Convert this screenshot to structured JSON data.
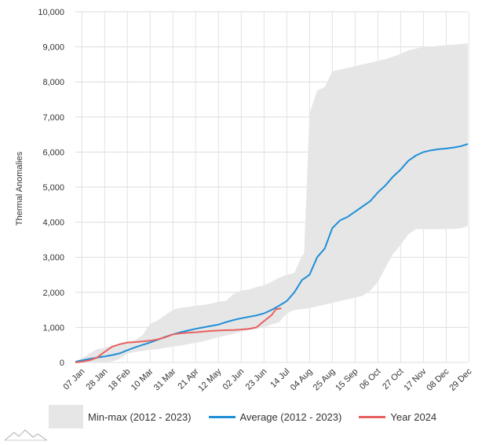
{
  "chart_data": {
    "type": "area",
    "title": "",
    "xlabel": "",
    "ylabel": "Thermal Anomalies",
    "ylim": [
      0,
      10000
    ],
    "yticks": [
      0,
      1000,
      2000,
      3000,
      4000,
      5000,
      6000,
      7000,
      8000,
      9000,
      10000
    ],
    "ytick_labels": [
      "0",
      "1,000",
      "2,000",
      "3,000",
      "4,000",
      "5,000",
      "6,000",
      "7,000",
      "8,000",
      "9,000",
      "10,000"
    ],
    "x_range_days": [
      1,
      363
    ],
    "x_ticks": [
      {
        "label": "07 Jan",
        "day": 7
      },
      {
        "label": "28 Jan",
        "day": 28
      },
      {
        "label": "18 Feb",
        "day": 49
      },
      {
        "label": "10 Mar",
        "day": 70
      },
      {
        "label": "31 Mar",
        "day": 91
      },
      {
        "label": "21 Apr",
        "day": 112
      },
      {
        "label": "12 May",
        "day": 133
      },
      {
        "label": "02 Jun",
        "day": 154
      },
      {
        "label": "23 Jun",
        "day": 175
      },
      {
        "label": "14 Jul",
        "day": 196
      },
      {
        "label": "04 Aug",
        "day": 217
      },
      {
        "label": "25 Aug",
        "day": 238
      },
      {
        "label": "15 Sep",
        "day": 259
      },
      {
        "label": "06 Oct",
        "day": 280
      },
      {
        "label": "27 Oct",
        "day": 301
      },
      {
        "label": "17 Nov",
        "day": 322
      },
      {
        "label": "08 Dec",
        "day": 343
      },
      {
        "label": "29 Dec",
        "day": 364
      }
    ],
    "grid": true,
    "legend_position": "bottom",
    "band": {
      "name": "Min-max (2012 - 2023)",
      "color": "#e6e6e6",
      "upper": [
        [
          1,
          20
        ],
        [
          7,
          120
        ],
        [
          14,
          250
        ],
        [
          21,
          380
        ],
        [
          28,
          420
        ],
        [
          35,
          480
        ],
        [
          42,
          540
        ],
        [
          49,
          580
        ],
        [
          56,
          640
        ],
        [
          63,
          780
        ],
        [
          70,
          1100
        ],
        [
          77,
          1200
        ],
        [
          84,
          1350
        ],
        [
          91,
          1500
        ],
        [
          98,
          1560
        ],
        [
          105,
          1580
        ],
        [
          112,
          1620
        ],
        [
          119,
          1640
        ],
        [
          126,
          1680
        ],
        [
          133,
          1730
        ],
        [
          140,
          1760
        ],
        [
          147,
          1950
        ],
        [
          154,
          2050
        ],
        [
          161,
          2080
        ],
        [
          168,
          2150
        ],
        [
          175,
          2200
        ],
        [
          182,
          2300
        ],
        [
          189,
          2420
        ],
        [
          196,
          2500
        ],
        [
          203,
          2550
        ],
        [
          210,
          3050
        ],
        [
          212,
          3100
        ],
        [
          217,
          7100
        ],
        [
          224,
          7750
        ],
        [
          231,
          7850
        ],
        [
          238,
          8300
        ],
        [
          245,
          8350
        ],
        [
          252,
          8400
        ],
        [
          259,
          8450
        ],
        [
          266,
          8500
        ],
        [
          273,
          8550
        ],
        [
          280,
          8600
        ],
        [
          287,
          8650
        ],
        [
          294,
          8720
        ],
        [
          301,
          8800
        ],
        [
          308,
          8900
        ],
        [
          315,
          8950
        ],
        [
          322,
          9000
        ],
        [
          329,
          9010
        ],
        [
          336,
          9030
        ],
        [
          343,
          9050
        ],
        [
          350,
          9060
        ],
        [
          357,
          9080
        ],
        [
          363,
          9100
        ]
      ],
      "lower": [
        [
          1,
          0
        ],
        [
          7,
          0
        ],
        [
          14,
          0
        ],
        [
          21,
          0
        ],
        [
          28,
          0
        ],
        [
          35,
          30
        ],
        [
          42,
          100
        ],
        [
          49,
          250
        ],
        [
          56,
          300
        ],
        [
          63,
          330
        ],
        [
          70,
          360
        ],
        [
          77,
          380
        ],
        [
          84,
          420
        ],
        [
          91,
          450
        ],
        [
          98,
          480
        ],
        [
          105,
          520
        ],
        [
          112,
          560
        ],
        [
          119,
          600
        ],
        [
          126,
          660
        ],
        [
          133,
          720
        ],
        [
          140,
          770
        ],
        [
          147,
          820
        ],
        [
          154,
          880
        ],
        [
          161,
          920
        ],
        [
          168,
          960
        ],
        [
          175,
          1000
        ],
        [
          182,
          1080
        ],
        [
          189,
          1150
        ],
        [
          196,
          1400
        ],
        [
          203,
          1500
        ],
        [
          210,
          1520
        ],
        [
          217,
          1550
        ],
        [
          224,
          1600
        ],
        [
          231,
          1650
        ],
        [
          238,
          1700
        ],
        [
          245,
          1750
        ],
        [
          252,
          1800
        ],
        [
          259,
          1850
        ],
        [
          266,
          1900
        ],
        [
          273,
          2050
        ],
        [
          280,
          2300
        ],
        [
          287,
          2700
        ],
        [
          294,
          3100
        ],
        [
          301,
          3350
        ],
        [
          308,
          3650
        ],
        [
          315,
          3800
        ],
        [
          322,
          3800
        ],
        [
          329,
          3800
        ],
        [
          336,
          3800
        ],
        [
          343,
          3800
        ],
        [
          350,
          3810
        ],
        [
          357,
          3830
        ],
        [
          363,
          3900
        ]
      ]
    },
    "series": [
      {
        "name": "Average (2012 - 2023)",
        "color": "#1f8fd6",
        "points": [
          [
            1,
            20
          ],
          [
            7,
            60
          ],
          [
            14,
            100
          ],
          [
            21,
            140
          ],
          [
            28,
            170
          ],
          [
            35,
            210
          ],
          [
            42,
            260
          ],
          [
            49,
            350
          ],
          [
            56,
            430
          ],
          [
            63,
            500
          ],
          [
            70,
            570
          ],
          [
            77,
            650
          ],
          [
            84,
            730
          ],
          [
            91,
            800
          ],
          [
            98,
            860
          ],
          [
            105,
            910
          ],
          [
            112,
            960
          ],
          [
            119,
            1000
          ],
          [
            126,
            1040
          ],
          [
            133,
            1080
          ],
          [
            140,
            1150
          ],
          [
            147,
            1210
          ],
          [
            154,
            1260
          ],
          [
            161,
            1300
          ],
          [
            168,
            1340
          ],
          [
            175,
            1400
          ],
          [
            182,
            1500
          ],
          [
            189,
            1620
          ],
          [
            196,
            1750
          ],
          [
            203,
            2000
          ],
          [
            210,
            2350
          ],
          [
            217,
            2500
          ],
          [
            224,
            3000
          ],
          [
            231,
            3250
          ],
          [
            238,
            3830
          ],
          [
            245,
            4050
          ],
          [
            252,
            4150
          ],
          [
            259,
            4300
          ],
          [
            266,
            4450
          ],
          [
            273,
            4600
          ],
          [
            280,
            4850
          ],
          [
            287,
            5050
          ],
          [
            294,
            5300
          ],
          [
            301,
            5500
          ],
          [
            308,
            5750
          ],
          [
            315,
            5900
          ],
          [
            322,
            6000
          ],
          [
            329,
            6050
          ],
          [
            336,
            6080
          ],
          [
            343,
            6100
          ],
          [
            350,
            6130
          ],
          [
            357,
            6170
          ],
          [
            363,
            6230
          ]
        ]
      },
      {
        "name": "Year 2024",
        "color": "#e8615f",
        "points": [
          [
            1,
            0
          ],
          [
            7,
            20
          ],
          [
            14,
            60
          ],
          [
            21,
            140
          ],
          [
            28,
            300
          ],
          [
            35,
            450
          ],
          [
            42,
            520
          ],
          [
            49,
            570
          ],
          [
            56,
            580
          ],
          [
            63,
            600
          ],
          [
            70,
            620
          ],
          [
            77,
            660
          ],
          [
            84,
            720
          ],
          [
            91,
            800
          ],
          [
            98,
            830
          ],
          [
            105,
            850
          ],
          [
            112,
            860
          ],
          [
            119,
            880
          ],
          [
            126,
            900
          ],
          [
            133,
            910
          ],
          [
            140,
            920
          ],
          [
            147,
            925
          ],
          [
            154,
            940
          ],
          [
            161,
            960
          ],
          [
            168,
            1000
          ],
          [
            175,
            1180
          ],
          [
            182,
            1350
          ],
          [
            186,
            1520
          ],
          [
            191,
            1540
          ]
        ]
      }
    ],
    "legend": [
      {
        "label": "Min-max (2012 - 2023)",
        "kind": "band",
        "color": "#e6e6e6"
      },
      {
        "label": "Average (2012 - 2023)",
        "kind": "line",
        "color": "#1f8fd6"
      },
      {
        "label": "Year 2024",
        "kind": "line",
        "color": "#e8615f"
      }
    ]
  }
}
